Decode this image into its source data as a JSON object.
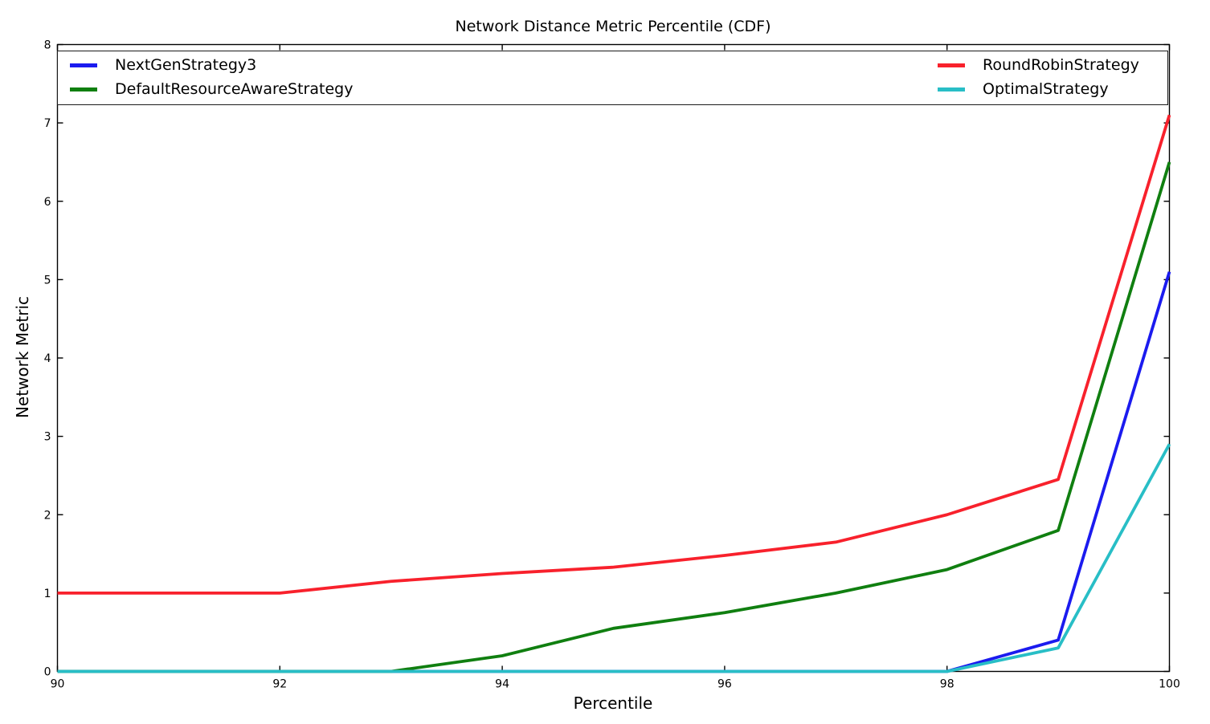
{
  "figure": {
    "title": "Network Distance Metric Percentile (CDF)",
    "xlabel": "Percentile",
    "ylabel": "Network Metric"
  },
  "chart_data": {
    "type": "line",
    "title": "Network Distance Metric Percentile (CDF)",
    "xlabel": "Percentile",
    "ylabel": "Network Metric",
    "xlim": [
      90,
      100
    ],
    "ylim": [
      0,
      8
    ],
    "xticks": [
      90,
      92,
      94,
      96,
      98,
      100
    ],
    "yticks": [
      0,
      1,
      2,
      3,
      4,
      5,
      6,
      7,
      8
    ],
    "grid": false,
    "legend_position": "top inside plot, full-width box, 2 columns",
    "x": [
      90,
      91,
      92,
      93,
      94,
      95,
      96,
      97,
      98,
      99,
      100
    ],
    "series": [
      {
        "name": "NextGenStrategy3",
        "color": "#1b1bef",
        "values": [
          0,
          0,
          0,
          0,
          0,
          0,
          0,
          0,
          0,
          0.4,
          5.1
        ]
      },
      {
        "name": "DefaultResourceAwareStrategy",
        "color": "#107f10",
        "values": [
          0,
          0,
          0,
          0,
          0.2,
          0.55,
          0.75,
          1.0,
          1.3,
          1.8,
          6.5
        ]
      },
      {
        "name": "RoundRobinStrategy",
        "color": "#f8212c",
        "values": [
          1.0,
          1.0,
          1.0,
          1.15,
          1.25,
          1.33,
          1.48,
          1.65,
          2.0,
          2.45,
          7.1
        ]
      },
      {
        "name": "OptimalStrategy",
        "color": "#28bec6",
        "values": [
          0,
          0,
          0,
          0,
          0,
          0,
          0,
          0,
          0,
          0.3,
          2.9
        ]
      }
    ]
  },
  "axes_style": {
    "spine_color": "#000000",
    "background": "#ffffff",
    "tick_direction": "in"
  }
}
